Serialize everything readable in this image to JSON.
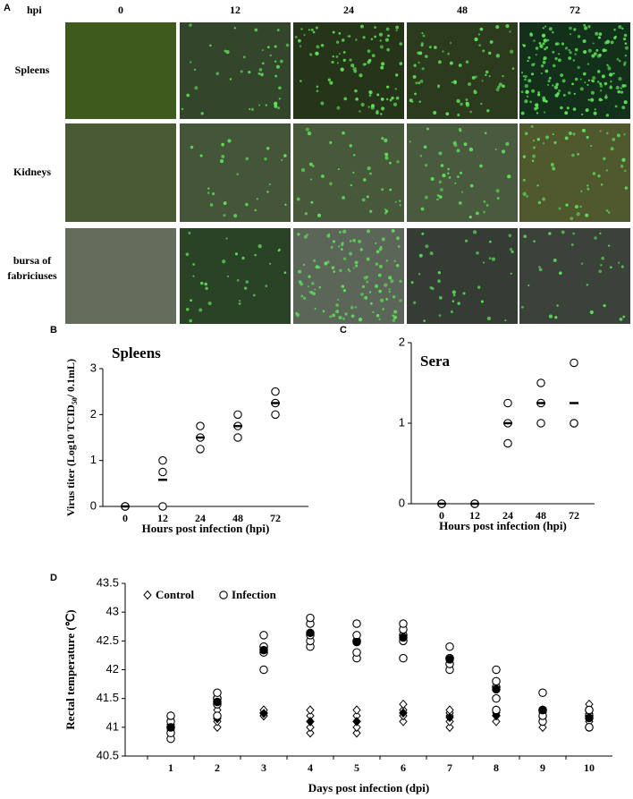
{
  "figure": {
    "panel_labels": [
      "A",
      "B",
      "C",
      "D"
    ],
    "hpi_label": "hpi",
    "time_points": [
      "0",
      "12",
      "24",
      "48",
      "72"
    ],
    "tissues": [
      "Spleens",
      "Kidneys",
      "bursa of",
      "fabriciuses"
    ]
  },
  "chart_data": [
    {
      "type": "scatter",
      "title": "Spleens",
      "categories": [
        "0",
        "12",
        "24",
        "48",
        "72"
      ],
      "points": [
        [
          0,
          0,
          0
        ],
        [
          0,
          0.75,
          1
        ],
        [
          1.25,
          1.5,
          1.75
        ],
        [
          1.5,
          1.75,
          2
        ],
        [
          2,
          2.25,
          2.5
        ]
      ],
      "means": [
        0,
        0.58,
        1.5,
        1.75,
        2.25
      ],
      "ylim": [
        0,
        3
      ],
      "yticks": [
        0,
        1,
        2,
        3
      ],
      "xlabel": "Hours post infection (hpi)",
      "ylabel": {
        "text": "Virus titer (Log10 TCID",
        "sub": "50",
        "tail": "/ 0.1mL)"
      }
    },
    {
      "type": "scatter",
      "title": "Sera",
      "categories": [
        "0",
        "12",
        "24",
        "48",
        "72"
      ],
      "points": [
        [
          0,
          0,
          0
        ],
        [
          0,
          0,
          0
        ],
        [
          0.75,
          1,
          1.25
        ],
        [
          1,
          1.25,
          1.5
        ],
        [
          1,
          1,
          1.75
        ]
      ],
      "means": [
        0,
        0,
        1,
        1.25,
        1.25
      ],
      "ylim": [
        0,
        2
      ],
      "yticks": [
        0,
        1,
        2
      ],
      "xlabel": "Hours post infection (hpi)"
    },
    {
      "type": "scatter",
      "categories": [
        "1",
        "2",
        "3",
        "4",
        "5",
        "6",
        "7",
        "8",
        "9",
        "10"
      ],
      "series": [
        {
          "name": "Control",
          "marker": "diamond",
          "points": [
            [
              40.95,
              41.0,
              41.05,
              41.1,
              41.2
            ],
            [
              41.0,
              41.1,
              41.15,
              41.2,
              41.3
            ],
            [
              41.2,
              41.2,
              41.25,
              41.25,
              41.3
            ],
            [
              40.9,
              41.0,
              41.1,
              41.2,
              41.3
            ],
            [
              40.9,
              41.0,
              41.1,
              41.2,
              41.3
            ],
            [
              41.1,
              41.2,
              41.25,
              41.3,
              41.4
            ],
            [
              41.0,
              41.1,
              41.2,
              41.25,
              41.3
            ],
            [
              41.1,
              41.2,
              41.2,
              41.25,
              41.3
            ],
            [
              41.0,
              41.1,
              41.2,
              41.25,
              41.3
            ],
            [
              41.1,
              41.2,
              41.2,
              41.3,
              41.4
            ]
          ],
          "means": [
            41.05,
            41.15,
            41.24,
            41.1,
            41.1,
            41.25,
            41.17,
            41.21,
            41.17,
            41.24
          ]
        },
        {
          "name": "Infection",
          "marker": "circle",
          "points": [
            [
              40.8,
              40.9,
              41.0,
              41.1,
              41.2
            ],
            [
              41.2,
              41.4,
              41.5,
              41.5,
              41.6
            ],
            [
              42.0,
              42.3,
              42.4,
              42.4,
              42.6
            ],
            [
              42.4,
              42.5,
              42.6,
              42.8,
              42.9
            ],
            [
              42.2,
              42.3,
              42.5,
              42.6,
              42.8
            ],
            [
              42.2,
              42.5,
              42.6,
              42.7,
              42.8
            ],
            [
              42.0,
              42.1,
              42.2,
              42.2,
              42.4
            ],
            [
              41.3,
              41.5,
              41.7,
              41.8,
              42.0
            ],
            [
              41.1,
              41.2,
              41.3,
              41.3,
              41.6
            ],
            [
              41.0,
              41.0,
              41.2,
              41.3,
              41.3
            ]
          ],
          "means": [
            41.0,
            41.44,
            42.34,
            42.64,
            42.48,
            42.56,
            42.18,
            41.66,
            41.3,
            41.16
          ]
        }
      ],
      "ylim": [
        40.5,
        43.5
      ],
      "yticks": [
        40.5,
        41,
        41.5,
        42,
        42.5,
        43,
        43.5
      ],
      "xlabel": "Days post infection (dpi)",
      "ylabel": "Rectal temperature (℃)"
    }
  ]
}
